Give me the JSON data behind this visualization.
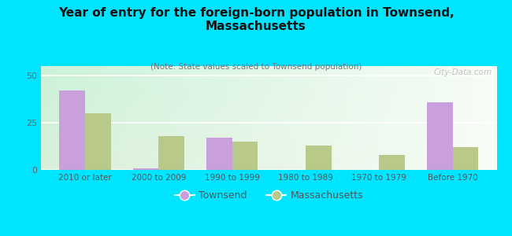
{
  "title": "Year of entry for the foreign-born population in Townsend,\nMassachusetts",
  "subtitle": "(Note: State values scaled to Townsend population)",
  "categories": [
    "2010 or later",
    "2000 to 2009",
    "1990 to 1999",
    "1980 to 1989",
    "1970 to 1979",
    "Before 1970"
  ],
  "townsend_values": [
    42,
    1,
    17,
    0,
    0,
    36
  ],
  "massachusetts_values": [
    30,
    18,
    15,
    13,
    8,
    12
  ],
  "townsend_color": "#c9a0dc",
  "massachusetts_color": "#b8c98a",
  "background_color": "#00e5ff",
  "ylim": [
    0,
    55
  ],
  "yticks": [
    0,
    25,
    50
  ],
  "bar_width": 0.35,
  "legend_townsend": "Townsend",
  "legend_massachusetts": "Massachusetts",
  "watermark": "City-Data.com",
  "grid_color": "#ffffff",
  "title_fontsize": 11,
  "subtitle_fontsize": 7.5,
  "tick_fontsize": 7.5,
  "ytick_fontsize": 8
}
